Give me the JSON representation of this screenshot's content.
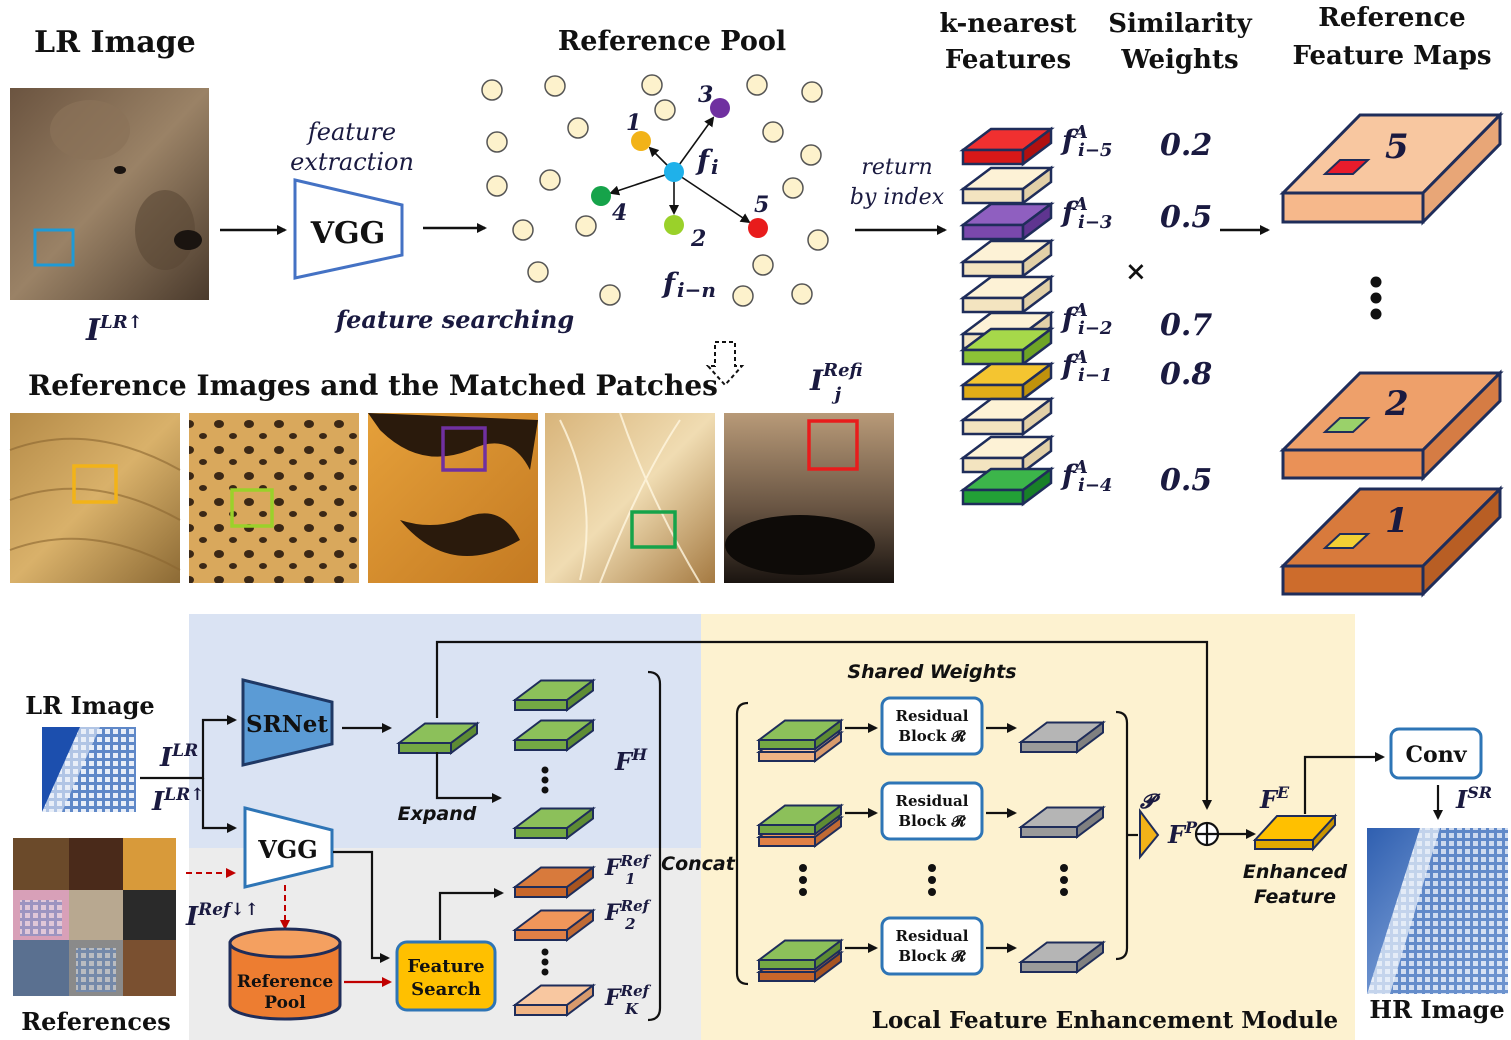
{
  "top": {
    "lr_image_title": "LR Image",
    "lr_label_main": "I",
    "lr_label_sup": "LR↑",
    "feature_extraction_1": "feature",
    "feature_extraction_2": "extraction",
    "vgg_label": "VGG",
    "feature_searching": "feature searching",
    "reference_pool_title": "Reference Pool",
    "pool_fi": "f",
    "pool_fi_sub": "i",
    "pool_fin": "f",
    "pool_fin_sub": "i−n",
    "neighbor_numbers": [
      "1",
      "2",
      "3",
      "4",
      "5"
    ],
    "return_1": "return",
    "return_2": "by index",
    "knearest_1": "k-nearest",
    "knearest_2": "Features",
    "sim_1": "Similarity",
    "sim_2": "Weights",
    "refmaps_1": "Reference",
    "refmaps_2": "Feature Maps",
    "features": [
      {
        "base": "f",
        "sup": "A",
        "sub": "i−5",
        "weight": "0.2"
      },
      {
        "base": "f",
        "sup": "A",
        "sub": "i−3",
        "weight": "0.5"
      },
      {
        "base": "f",
        "sup": "A",
        "sub": "i−2",
        "weight": "0.7"
      },
      {
        "base": "f",
        "sup": "A",
        "sub": "i−1",
        "weight": "0.8"
      },
      {
        "base": "f",
        "sup": "A",
        "sub": "i−4",
        "weight": "0.5"
      }
    ],
    "times": "×",
    "map_numbers": [
      "5",
      "2",
      "1"
    ],
    "ref_images_title": "Reference Images and the Matched Patches",
    "ref_label_main": "I",
    "ref_label_sup": "Ref",
    "ref_label_sub": "ij"
  },
  "bottom": {
    "lr_image_title": "LR Image",
    "ilr": "I",
    "ilr_sup": "LR",
    "ilr_up": "I",
    "ilr_up_sup": "LR↑",
    "srnet": "SRNet",
    "vgg": "VGG",
    "expand": "Expand",
    "fh": "F",
    "fh_sup": "H",
    "references": "References",
    "iref": "I",
    "iref_sup": "Ref↓↑",
    "reference_pool_1": "Reference",
    "reference_pool_2": "Pool",
    "feature_search_1": "Feature",
    "feature_search_2": "Search",
    "fref": [
      {
        "base": "F",
        "sup": "Ref",
        "sub": "1"
      },
      {
        "base": "F",
        "sup": "Ref",
        "sub": "2"
      },
      {
        "base": "F",
        "sup": "Ref",
        "sub": "K"
      }
    ],
    "concat": "Concat",
    "shared_weights": "Shared Weights",
    "residual_1": "Residual",
    "residual_2": "Block 𝓡",
    "p_label": "𝓟",
    "fp": "F",
    "fp_sup": "P",
    "fe": "F",
    "fe_sup": "E",
    "enhanced_1": "Enhanced",
    "enhanced_2": "Feature",
    "conv": "Conv",
    "isr": "I",
    "isr_sup": "SR",
    "hr_image": "HR Image",
    "module_title": "Local Feature Enhancement Module"
  },
  "colors": {
    "blue_panel": "#dae3f3",
    "gray_panel": "#ececec",
    "yellow_panel": "#fdf2d0",
    "green": "#8cc05a",
    "orange": "#e98a4e",
    "gold": "#f2c230",
    "accent_blue": "#2e75b6"
  }
}
